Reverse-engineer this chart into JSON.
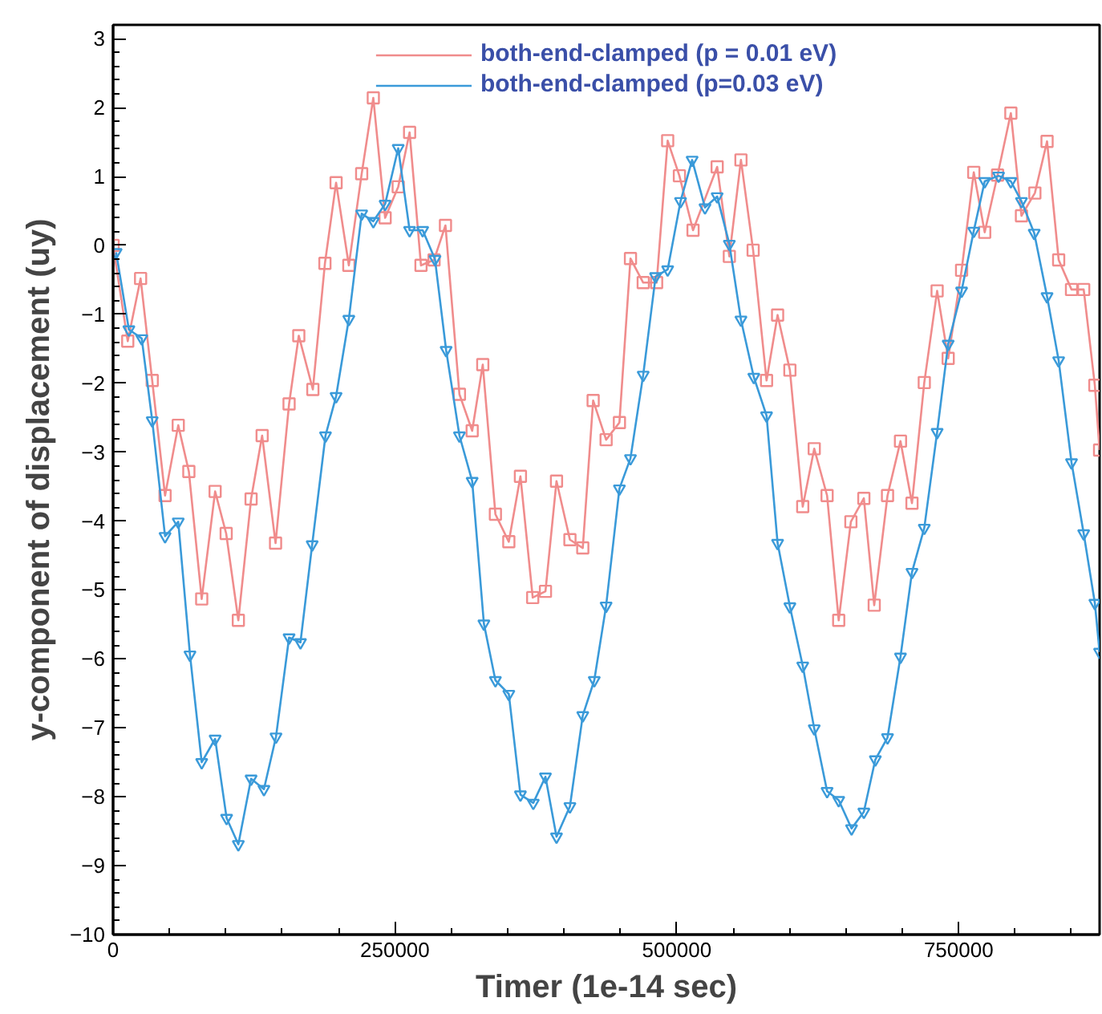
{
  "chart_data": {
    "type": "line",
    "xlabel": "Timer (1e-14 sec)",
    "ylabel": "y-component of displacement (uy)",
    "xlim": [
      0,
      875000
    ],
    "ylim": [
      -10,
      3.2
    ],
    "xticks": [
      0,
      250000,
      500000,
      750000
    ],
    "yticks": [
      -10,
      -9,
      -8,
      -7,
      -6,
      -5,
      -4,
      -3,
      -2,
      -1,
      0,
      1,
      2,
      3
    ],
    "grid": false,
    "legend": "top",
    "line_style": "solid",
    "series": [
      {
        "name": "both-end-clamped (p = 0.01 eV)",
        "color": "#f08c8c",
        "marker": "square",
        "x": [
          0,
          13000,
          24400,
          34700,
          46100,
          57800,
          67200,
          78600,
          90500,
          100300,
          111100,
          122400,
          132200,
          144100,
          156100,
          164700,
          177200,
          187900,
          197800,
          209100,
          220500,
          230800,
          241300,
          252900,
          263000,
          273100,
          284700,
          294800,
          307200,
          318500,
          327900,
          339100,
          351000,
          361300,
          372200,
          383500,
          393300,
          405200,
          416600,
          425800,
          437300,
          449100,
          458900,
          470200,
          482100,
          491900,
          502300,
          514400,
          535800,
          546600,
          556900,
          567700,
          579600,
          589400,
          600300,
          611700,
          621900,
          633300,
          643600,
          654400,
          665900,
          675100,
          686900,
          698400,
          708600,
          719500,
          730900,
          740700,
          752600,
          763400,
          773100,
          784500,
          796300,
          805700,
          817600,
          828400,
          838700,
          850100,
          860900,
          870800,
          875000
        ],
        "values": [
          0,
          -1.39,
          -0.48,
          -1.96,
          -3.63,
          -2.61,
          -3.28,
          -5.13,
          -3.57,
          -4.18,
          -5.44,
          -3.68,
          -2.76,
          -4.32,
          -2.3,
          -1.31,
          -2.09,
          -0.26,
          0.91,
          -0.29,
          1.04,
          2.14,
          0.4,
          0.85,
          1.64,
          -0.29,
          -0.21,
          0.29,
          -2.16,
          -2.69,
          -1.73,
          -3.9,
          -4.3,
          -3.35,
          -5.11,
          -5.02,
          -3.42,
          -4.27,
          -4.39,
          -2.25,
          -2.82,
          -2.57,
          -0.19,
          -0.54,
          -0.54,
          1.52,
          1.01,
          0.22,
          1.14,
          -0.16,
          1.24,
          -0.07,
          -1.96,
          -1.01,
          -1.81,
          -3.79,
          -2.95,
          -3.63,
          -5.44,
          -4.01,
          -3.67,
          -5.22,
          -3.63,
          -2.84,
          -3.74,
          -1.99,
          -0.66,
          -1.64,
          -0.36,
          1.06,
          0.19,
          1.02,
          1.92,
          0.43,
          0.76,
          1.51,
          -0.21,
          -0.64,
          -0.64,
          -2.03,
          -2.97
        ]
      },
      {
        "name": "both-end-clamped (p=0.03 eV)",
        "color": "#3a9ad9",
        "marker": "triangle",
        "x": [
          2700,
          14000,
          25400,
          34700,
          46100,
          57800,
          68200,
          78600,
          90500,
          100700,
          111100,
          122400,
          133800,
          144500,
          156100,
          166200,
          176600,
          188400,
          197800,
          209100,
          220500,
          230800,
          241300,
          252900,
          263000,
          274600,
          285500,
          295400,
          307200,
          318500,
          328900,
          339100,
          351000,
          361300,
          372700,
          383500,
          393300,
          405200,
          416600,
          426800,
          437300,
          449100,
          458900,
          470200,
          481200,
          491900,
          503300,
          513600,
          525000,
          535800,
          546600,
          556900,
          568300,
          579600,
          589400,
          600300,
          611700,
          621900,
          633300,
          643600,
          655000,
          665900,
          676100,
          686900,
          698400,
          708600,
          719500,
          730900,
          740700,
          752600,
          763400,
          773100,
          785400,
          796300,
          805700,
          817000,
          828400,
          838700,
          850100,
          860900,
          870800,
          875000
        ],
        "values": [
          -0.1,
          -1.22,
          -1.35,
          -2.54,
          -4.22,
          -4.01,
          -5.94,
          -7.5,
          -7.16,
          -8.31,
          -8.69,
          -7.74,
          -7.89,
          -7.13,
          -5.69,
          -5.76,
          -4.34,
          -2.76,
          -2.19,
          -1.07,
          0.46,
          0.35,
          0.6,
          1.41,
          0.22,
          0.22,
          -0.2,
          -1.52,
          -2.76,
          -3.42,
          -5.49,
          -6.31,
          -6.51,
          -7.97,
          -8.09,
          -7.71,
          -8.58,
          -8.14,
          -6.82,
          -6.31,
          -5.23,
          -3.53,
          -3.09,
          -1.88,
          -0.45,
          -0.35,
          0.64,
          1.24,
          0.55,
          0.71,
          0.02,
          -1.08,
          -1.91,
          -2.47,
          -4.32,
          -5.24,
          -6.1,
          -7.01,
          -7.92,
          -8.05,
          -8.46,
          -8.22,
          -7.46,
          -7.14,
          -5.97,
          -4.74,
          -4.1,
          -2.71,
          -1.43,
          -0.66,
          0.21,
          0.93,
          1.01,
          0.93,
          0.64,
          0.18,
          -0.74,
          -1.67,
          -3.15,
          -4.18,
          -5.19,
          -5.9
        ]
      }
    ]
  }
}
